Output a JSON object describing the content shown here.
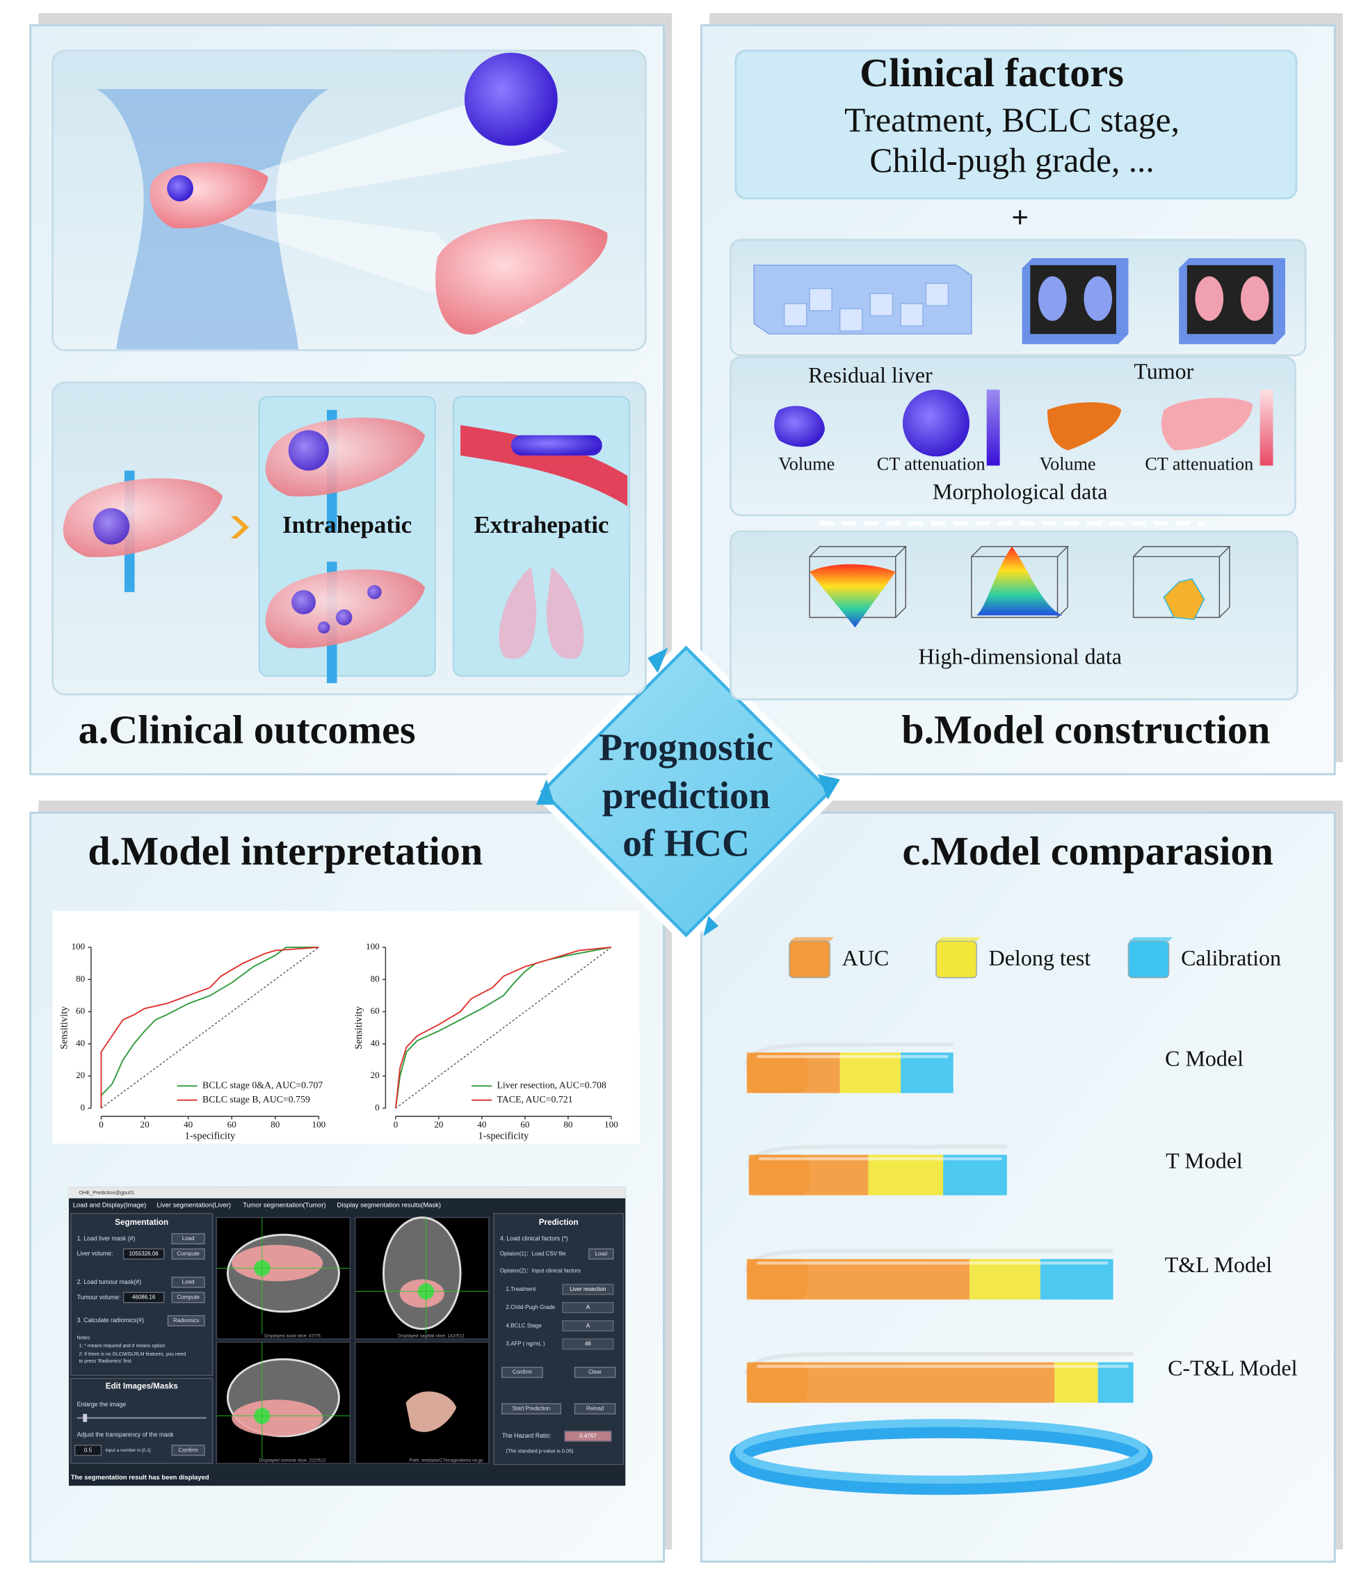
{
  "center_title": [
    "Prognostic",
    "prediction",
    "of HCC"
  ],
  "panel_a": {
    "title": "a.Clinical outcomes",
    "labels": [
      "Intrahepatic",
      "Extrahepatic"
    ]
  },
  "panel_b": {
    "title": "b.Model construction",
    "clinical_heading": "Clinical factors",
    "clinical_lines": [
      "Treatment, BCLC stage,",
      "Child-pugh grade, ..."
    ],
    "plus": "+",
    "groups": [
      "Residual liver",
      "Tumor"
    ],
    "items": [
      "Volume",
      "CT attenuation",
      "Volume",
      "CT attenuation"
    ],
    "morphological": "Morphological data",
    "high_dimensional": "High-dimensional data"
  },
  "panel_c": {
    "title": "c.Model comparasion",
    "legend": [
      {
        "name": "AUC",
        "color": "#f39a3c"
      },
      {
        "name": "Delong test",
        "color": "#f2e63a"
      },
      {
        "name": "Calibration",
        "color": "#3fc3ef"
      }
    ],
    "models": [
      "C Model",
      "T Model",
      "T&L Model",
      "C-T&L Model"
    ]
  },
  "panel_d": {
    "title": "d.Model interpretation",
    "roc": [
      {
        "type": "line",
        "xlabel": "1-specificity",
        "ylabel": "Sensitivity",
        "xlim": [
          0,
          100
        ],
        "ylim": [
          0,
          100
        ],
        "xticks": [
          0,
          20,
          40,
          60,
          80,
          100
        ],
        "yticks": [
          0,
          20,
          40,
          60,
          80,
          100
        ],
        "series": [
          {
            "name": "BCLC stage 0&A, AUC=0.707",
            "color": "#2e9a3a",
            "x": [
              0,
              0,
              5,
              10,
              15,
              20,
              25,
              30,
              40,
              50,
              60,
              70,
              80,
              85,
              100
            ],
            "values": [
              0,
              8,
              15,
              30,
              40,
              48,
              55,
              58,
              65,
              70,
              78,
              88,
              95,
              100,
              100
            ]
          },
          {
            "name": "BCLC stage B, AUC=0.759",
            "color": "#e0302c",
            "x": [
              0,
              0,
              5,
              10,
              15,
              20,
              30,
              40,
              50,
              55,
              65,
              75,
              80,
              100
            ],
            "values": [
              0,
              35,
              45,
              55,
              58,
              62,
              65,
              70,
              75,
              82,
              90,
              96,
              98,
              100
            ]
          }
        ]
      },
      {
        "type": "line",
        "xlabel": "1-specificity",
        "ylabel": "Sensitivity",
        "xlim": [
          0,
          100
        ],
        "ylim": [
          0,
          100
        ],
        "xticks": [
          0,
          20,
          40,
          60,
          80,
          100
        ],
        "yticks": [
          0,
          20,
          40,
          60,
          80,
          100
        ],
        "series": [
          {
            "name": "Liver resection, AUC=0.708",
            "color": "#2e9a3a",
            "x": [
              0,
              2,
              5,
              10,
              20,
              30,
              40,
              50,
              55,
              60,
              65,
              70,
              80,
              100
            ],
            "values": [
              0,
              20,
              35,
              42,
              48,
              55,
              62,
              70,
              78,
              85,
              90,
              92,
              95,
              100
            ]
          },
          {
            "name": "TACE, AUC=0.721",
            "color": "#e0302c",
            "x": [
              0,
              2,
              5,
              10,
              20,
              30,
              35,
              45,
              50,
              60,
              70,
              85,
              100
            ],
            "values": [
              0,
              25,
              38,
              45,
              52,
              60,
              68,
              75,
              82,
              88,
              92,
              98,
              100
            ]
          }
        ]
      }
    ],
    "gui": {
      "window_title": "OHE_Prediction@gpu01",
      "menu": [
        "Load and Display(Image)",
        "Liver segmentation(Liver)",
        "Tumor segmentation(Tumor)",
        "Display segmentation results(Mask)"
      ],
      "seg": {
        "heading": "Segmentation",
        "load_liver": "1. Load liver mask (#)",
        "load_btn1": "Load",
        "liver_volume_label": "Liver volume:",
        "liver_volume": "1055326.06",
        "compute1": "Compute",
        "load_tumour": "2. Load tumour mask(#)",
        "load_btn2": "Load",
        "tumour_volume_label": "Tumour volume:",
        "tumour_volume": "46086.16",
        "compute2": "Compute",
        "radiomics_label": "3. Calculate radiomics(#)",
        "radiomics_btn": "Radiomics",
        "notes": [
          "Notes:",
          "1: * means required and # means option",
          "2: If there is no GLCM/GLRLM features, you need",
          "to press 'Radiomics' first."
        ]
      },
      "edit": {
        "heading": "Edit Images/Masks",
        "enlarge": "Enlarge the image",
        "transparency": "Adjust the transparency of the mask",
        "value": "0.5",
        "hint": "Input a number in [0,1]",
        "confirm": "Confirm"
      },
      "views": [
        "Displayed axial slice:   47/75",
        "Displayed sagittal slice:   142/512",
        "Displayed coronal slice:   222/512",
        "Path: testdata/CTimage/demo.nii.gz"
      ],
      "pred": {
        "heading": "Prediction",
        "load_factors": "4. Load clinical factors (*)",
        "opt1": "Optaion(1)：Load CSV file",
        "load_btn": "Load",
        "opt2": "Optaion(2)：Input clinical factors",
        "fields": [
          {
            "label": "1.Treatment",
            "value": "Liver resection"
          },
          {
            "label": "2.Child-Pugh Grade",
            "value": "A"
          },
          {
            "label": "4.BCLC Stage",
            "value": "A"
          },
          {
            "label": "3.AFP ( ng/mL )",
            "value": "46"
          }
        ],
        "confirm": "Confirm",
        "clear": "Clear",
        "start": "Start Prediction",
        "reload": "Reload",
        "hr_label": "The Hazard Ratio:",
        "hr_value": "0.4767",
        "p_note": "(The standard p-value is 0.05)"
      },
      "status": "The segmentation result has been displayed"
    }
  }
}
